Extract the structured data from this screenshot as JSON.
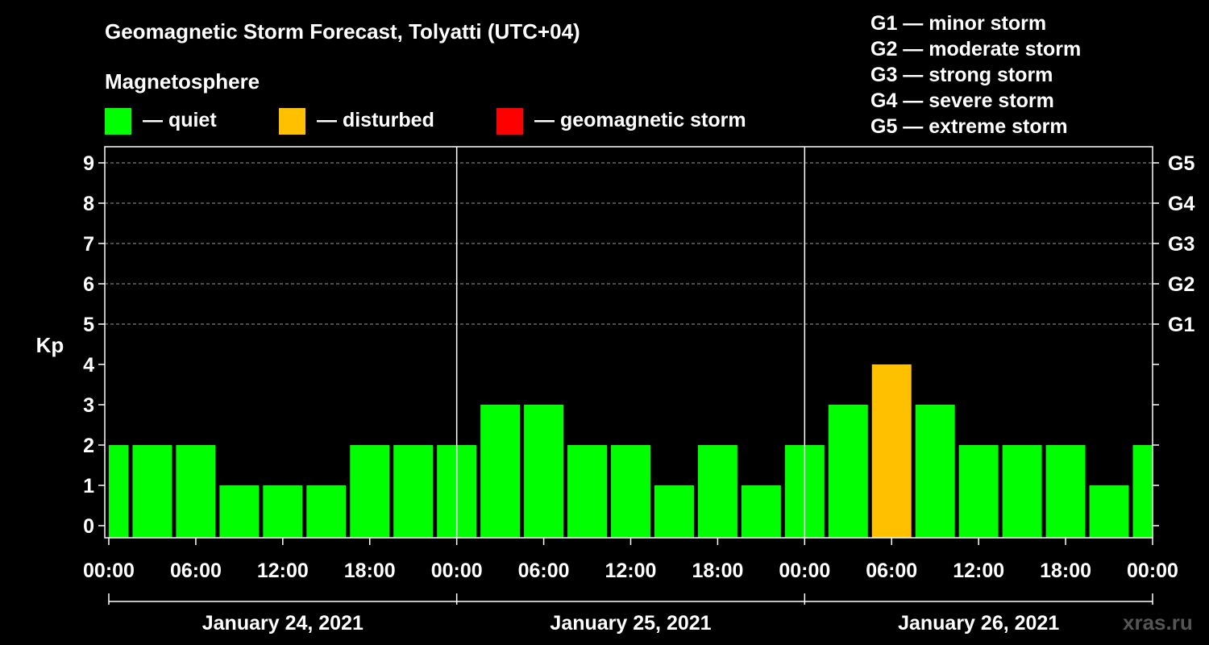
{
  "title": "Geomagnetic Storm Forecast, Tolyatti (UTC+04)",
  "legend": {
    "heading": "Magnetosphere",
    "items": [
      {
        "label": "— quiet",
        "color": "#00ff00"
      },
      {
        "label": "— disturbed",
        "color": "#ffc000"
      },
      {
        "label": "— geomagnetic storm",
        "color": "#ff0000"
      }
    ]
  },
  "g_scale": [
    "G1 — minor storm",
    "G2 — moderate storm",
    "G3 — strong storm",
    "G4 — severe storm",
    "G5 — extreme storm"
  ],
  "watermark": "xras.ru",
  "chart_data": {
    "type": "bar",
    "ylabel": "Kp",
    "ylim": [
      0,
      9
    ],
    "yticks": [
      "0",
      "1",
      "2",
      "3",
      "4",
      "5",
      "6",
      "7",
      "8",
      "9"
    ],
    "right_ticks": [
      {
        "kp": 5,
        "label": "G1"
      },
      {
        "kp": 6,
        "label": "G2"
      },
      {
        "kp": 7,
        "label": "G3"
      },
      {
        "kp": 8,
        "label": "G4"
      },
      {
        "kp": 9,
        "label": "G5"
      }
    ],
    "grid": "dashed horizontal at Kp 5–9",
    "xticks": [
      "00:00",
      "06:00",
      "12:00",
      "18:00",
      "00:00",
      "06:00",
      "12:00",
      "18:00",
      "00:00",
      "06:00",
      "12:00",
      "18:00",
      "00:00"
    ],
    "days": [
      "January 24, 2021",
      "January 25, 2021",
      "January 26, 2021"
    ],
    "interval_hours": 3,
    "values": [
      2,
      2,
      2,
      1,
      1,
      1,
      2,
      2,
      2,
      3,
      3,
      2,
      2,
      1,
      2,
      1,
      2,
      3,
      4,
      3,
      2,
      2,
      2,
      1,
      2
    ],
    "levels": [
      "quiet",
      "quiet",
      "quiet",
      "quiet",
      "quiet",
      "quiet",
      "quiet",
      "quiet",
      "quiet",
      "quiet",
      "quiet",
      "quiet",
      "quiet",
      "quiet",
      "quiet",
      "quiet",
      "quiet",
      "quiet",
      "disturbed",
      "quiet",
      "quiet",
      "quiet",
      "quiet",
      "quiet",
      "quiet"
    ]
  }
}
